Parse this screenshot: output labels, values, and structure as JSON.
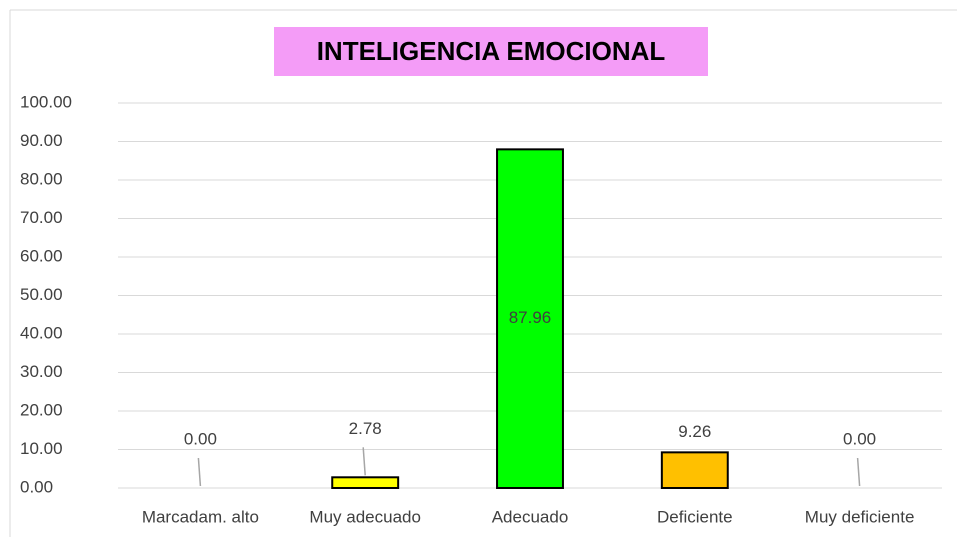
{
  "chart_data": {
    "type": "bar",
    "title": "INTELIGENCIA EMOCIONAL",
    "categories": [
      "Marcadam. alto",
      "Muy adecuado",
      "Adecuado",
      "Deficiente",
      "Muy deficiente"
    ],
    "values": [
      0,
      2.78,
      87.96,
      9.26,
      0
    ],
    "value_labels": [
      "0.00",
      "2.78",
      "87.96",
      "9.26",
      "0.00"
    ],
    "colors": [
      "#ffffff",
      "#ffff00",
      "#00ff00",
      "#ffc000",
      "#ffffff"
    ],
    "ylim": [
      0,
      100
    ],
    "yticks": [
      {
        "value": 0,
        "label": "0.00"
      },
      {
        "value": 10,
        "label": "10.00"
      },
      {
        "value": 20,
        "label": "20.00"
      },
      {
        "value": 30,
        "label": "30.00"
      },
      {
        "value": 40,
        "label": "40.00"
      },
      {
        "value": 50,
        "label": "50.00"
      },
      {
        "value": 60,
        "label": "60.00"
      },
      {
        "value": 70,
        "label": "70.00"
      },
      {
        "value": 80,
        "label": "80.00"
      },
      {
        "value": 90,
        "label": "90.00"
      },
      {
        "value": 100,
        "label": "100.00"
      }
    ],
    "grid": true
  }
}
